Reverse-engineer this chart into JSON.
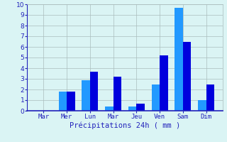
{
  "bars": [
    {
      "day": "Mar",
      "values": [
        0,
        0
      ]
    },
    {
      "day": "Mer",
      "values": [
        1.8,
        1.8
      ]
    },
    {
      "day": "Lun",
      "values": [
        2.9,
        3.7
      ]
    },
    {
      "day": "Mar",
      "values": [
        0.4,
        3.2
      ]
    },
    {
      "day": "Jeu",
      "values": [
        0.4,
        0.7
      ]
    },
    {
      "day": "Ven",
      "values": [
        2.5,
        5.2
      ]
    },
    {
      "day": "Sam",
      "values": [
        9.7,
        6.5
      ]
    },
    {
      "day": "Dim",
      "values": [
        1.0,
        2.5
      ]
    }
  ],
  "day_labels": [
    "Mar",
    "Mer",
    "Lun",
    "Mar",
    "Jeu",
    "Ven",
    "Sam",
    "Dim"
  ],
  "bar_color_dark": "#0000dd",
  "bar_color_light": "#2299ff",
  "background_color": "#daf4f4",
  "grid_color": "#aabcbc",
  "text_color": "#2222bb",
  "xlabel": "Précipitations 24h ( mm )",
  "ylim": [
    0,
    10
  ],
  "yticks": [
    0,
    1,
    2,
    3,
    4,
    5,
    6,
    7,
    8,
    9,
    10
  ]
}
